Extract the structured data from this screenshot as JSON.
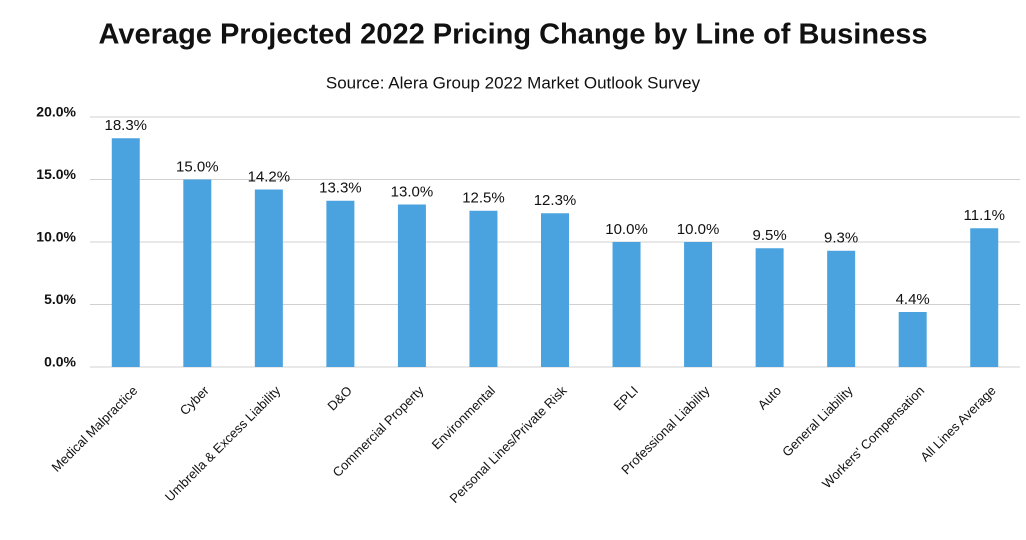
{
  "chart_data": {
    "type": "bar",
    "title": "Average Projected 2022 Pricing Change by Line of Business",
    "subtitle": "Source: Alera Group 2022 Market Outlook Survey",
    "categories": [
      "Medical Malpractice",
      "Cyber",
      "Umbrella & Excess Liability",
      "D&O",
      "Commercial Property",
      "Environmental",
      "Personal Lines/Private Risk",
      "EPLI",
      "Professional Liability",
      "Auto",
      "General Liability",
      "Workers' Compensation",
      "All Lines Average"
    ],
    "values": [
      18.3,
      15.0,
      14.2,
      13.3,
      13.0,
      12.5,
      12.3,
      10.0,
      10.0,
      9.5,
      9.3,
      4.4,
      11.1
    ],
    "value_labels": [
      "18.3%",
      "15.0%",
      "14.2%",
      "13.3%",
      "13.0%",
      "12.5%",
      "12.3%",
      "10.0%",
      "10.0%",
      "9.5%",
      "9.3%",
      "4.4%",
      "11.1%"
    ],
    "color": "#4aa3df",
    "ylim": [
      0,
      20
    ],
    "yticks": [
      {
        "value": 0,
        "label": "0.0%"
      },
      {
        "value": 5,
        "label": "5.0%"
      },
      {
        "value": 10,
        "label": "10.0%"
      },
      {
        "value": 15,
        "label": "15.0%"
      },
      {
        "value": 20,
        "label": "20.0%"
      }
    ],
    "grid": true
  }
}
